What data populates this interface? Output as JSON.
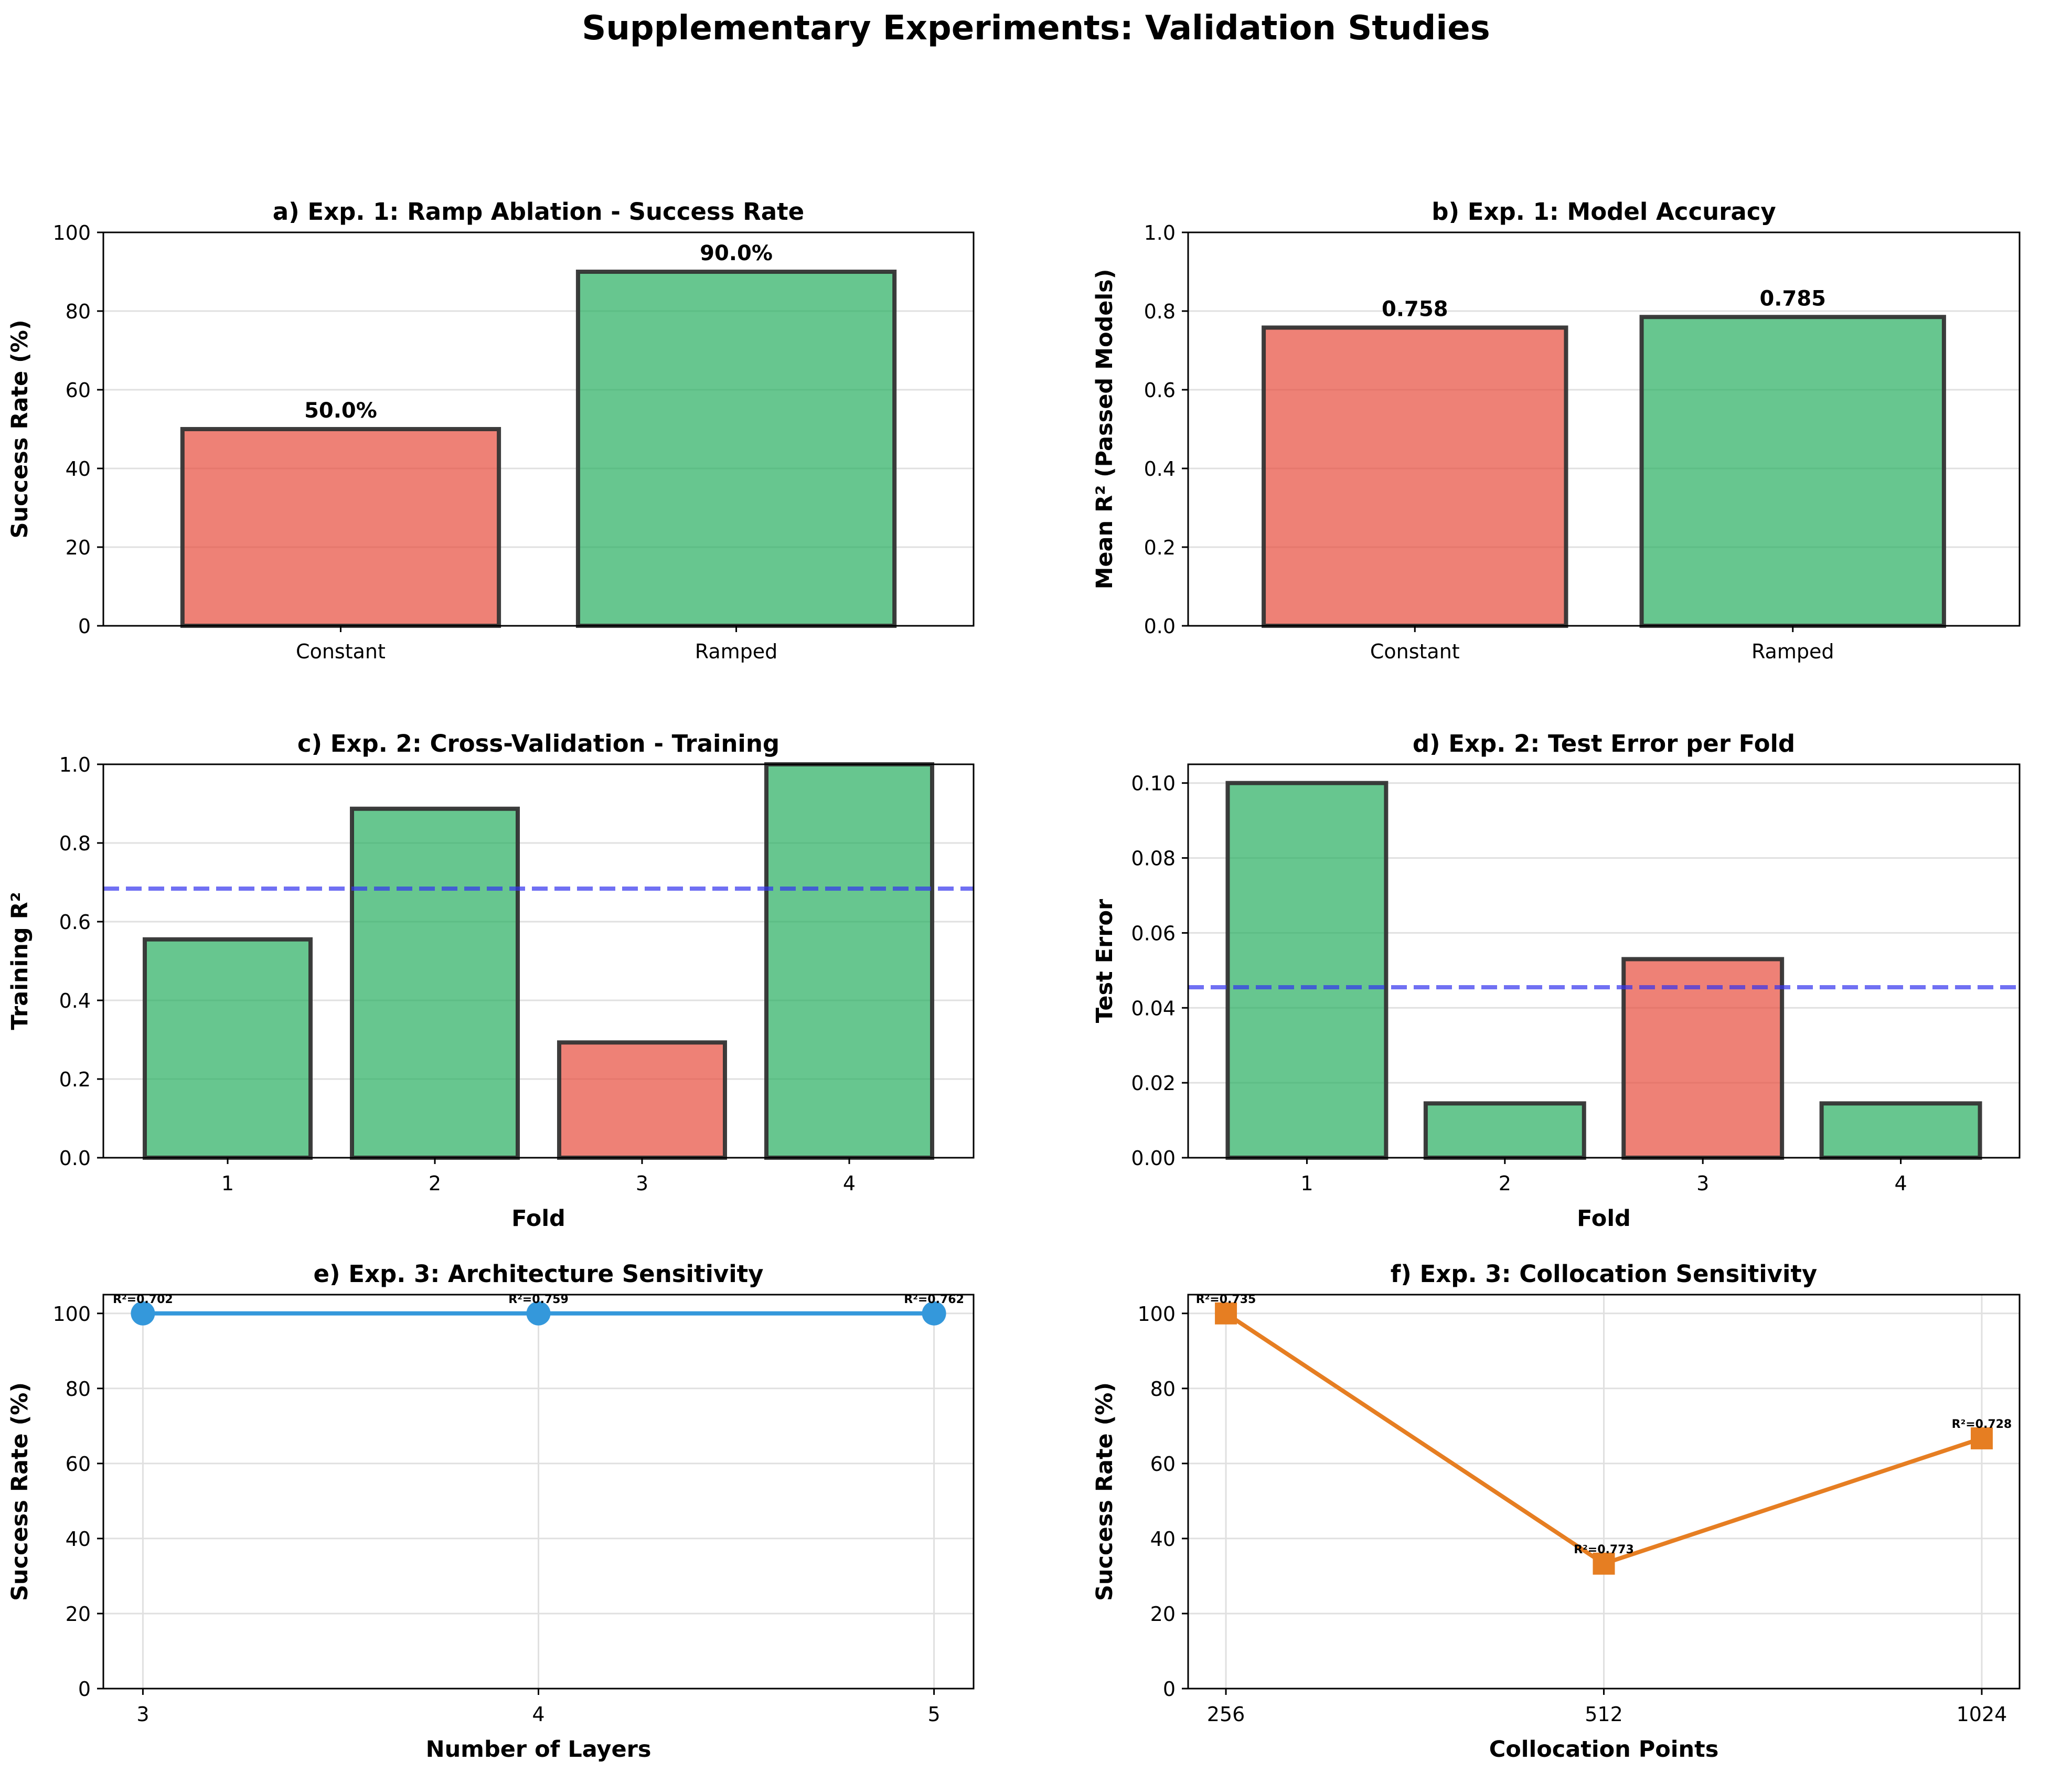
{
  "figure": {
    "title": "Supplementary Experiments: Validation Studies"
  },
  "colors": {
    "red": "#e74c3c",
    "green": "#27ae60",
    "blue": "#3498db",
    "orange": "#e67e22",
    "refline": "#3333ee",
    "edge": "#333333"
  },
  "chart_data": [
    {
      "id": "a",
      "type": "bar",
      "title": "a) Exp. 1: Ramp Ablation - Success Rate",
      "xlabel": "",
      "ylabel": "Success Rate (%)",
      "categories": [
        "Constant",
        "Ramped"
      ],
      "values": [
        50.0,
        90.0
      ],
      "bar_colors": [
        "red",
        "green"
      ],
      "data_labels": [
        "50.0%",
        "90.0%"
      ],
      "ylim": [
        0,
        100
      ],
      "yticks": [
        0,
        20,
        40,
        60,
        80,
        100
      ],
      "ytick_labels": [
        "0",
        "20",
        "40",
        "60",
        "80",
        "100"
      ],
      "grid": "y",
      "refline": null
    },
    {
      "id": "b",
      "type": "bar",
      "title": "b) Exp. 1: Model Accuracy",
      "xlabel": "",
      "ylabel": "Mean R² (Passed Models)",
      "categories": [
        "Constant",
        "Ramped"
      ],
      "values": [
        0.758,
        0.785
      ],
      "bar_colors": [
        "red",
        "green"
      ],
      "data_labels": [
        "0.758",
        "0.785"
      ],
      "ylim": [
        0,
        1
      ],
      "yticks": [
        0,
        0.2,
        0.4,
        0.6,
        0.8,
        1.0
      ],
      "ytick_labels": [
        "0.0",
        "0.2",
        "0.4",
        "0.6",
        "0.8",
        "1.0"
      ],
      "grid": "y",
      "refline": null
    },
    {
      "id": "c",
      "type": "bar",
      "title": "c) Exp. 2: Cross-Validation - Training",
      "xlabel": "Fold",
      "ylabel": "Training R²",
      "categories": [
        "1",
        "2",
        "3",
        "4"
      ],
      "values": [
        0.555,
        0.887,
        0.293,
        1.0
      ],
      "bar_colors": [
        "green",
        "green",
        "red",
        "green"
      ],
      "data_labels": [],
      "ylim": [
        0,
        1
      ],
      "yticks": [
        0,
        0.2,
        0.4,
        0.6,
        0.8,
        1.0
      ],
      "ytick_labels": [
        "0.0",
        "0.2",
        "0.4",
        "0.6",
        "0.8",
        "1.0"
      ],
      "grid": "y",
      "refline": 0.684
    },
    {
      "id": "d",
      "type": "bar",
      "title": "d) Exp. 2: Test Error per Fold",
      "xlabel": "Fold",
      "ylabel": "Test Error",
      "categories": [
        "1",
        "2",
        "3",
        "4"
      ],
      "values": [
        0.1,
        0.0145,
        0.053,
        0.0145
      ],
      "bar_colors": [
        "green",
        "green",
        "red",
        "green"
      ],
      "data_labels": [],
      "ylim": [
        0,
        0.105
      ],
      "yticks": [
        0,
        0.02,
        0.04,
        0.06,
        0.08,
        0.1
      ],
      "ytick_labels": [
        "0.00",
        "0.02",
        "0.04",
        "0.06",
        "0.08",
        "0.10"
      ],
      "grid": "y",
      "refline": 0.0455
    },
    {
      "id": "e",
      "type": "line",
      "title": "e) Exp. 3: Architecture Sensitivity",
      "xlabel": "Number of Layers",
      "ylabel": "Success Rate (%)",
      "categories": [
        "3",
        "4",
        "5"
      ],
      "values": [
        100,
        100,
        100
      ],
      "point_labels": [
        "R²=0.702",
        "R²=0.759",
        "R²=0.762"
      ],
      "marker": "circle",
      "line_color": "blue",
      "ylim": [
        0,
        105
      ],
      "yticks": [
        0,
        20,
        40,
        60,
        80,
        100
      ],
      "ytick_labels": [
        "0",
        "20",
        "40",
        "60",
        "80",
        "100"
      ],
      "grid": "both",
      "refline": null
    },
    {
      "id": "f",
      "type": "line",
      "title": "f) Exp. 3: Collocation Sensitivity",
      "xlabel": "Collocation Points",
      "ylabel": "Success Rate (%)",
      "categories": [
        "256",
        "512",
        "1024"
      ],
      "values": [
        100,
        33.3,
        66.7
      ],
      "point_labels": [
        "R²=0.735",
        "R²=0.773",
        "R²=0.728"
      ],
      "marker": "square",
      "line_color": "orange",
      "ylim": [
        0,
        105
      ],
      "yticks": [
        0,
        20,
        40,
        60,
        80,
        100
      ],
      "ytick_labels": [
        "0",
        "20",
        "40",
        "60",
        "80",
        "100"
      ],
      "grid": "both",
      "refline": null
    }
  ]
}
